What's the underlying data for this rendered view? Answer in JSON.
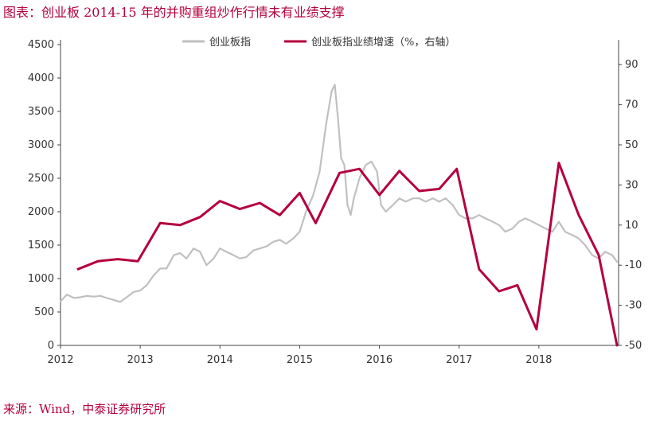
{
  "title": "图表：创业板 2014-15 年的并购重组炒作行情未有业绩支撑",
  "source": "来源：Wind，中泰证券研究所",
  "chart_data": {
    "type": "line",
    "x_ticks": [
      "2012",
      "2013",
      "2014",
      "2015",
      "2016",
      "2017",
      "2018"
    ],
    "xlim": [
      2012,
      2019
    ],
    "y_left_ticks": [
      "0",
      "500",
      "1000",
      "1500",
      "2000",
      "2500",
      "3000",
      "3500",
      "4000",
      "4500"
    ],
    "ylim_left": [
      0,
      4500
    ],
    "y_right_ticks": [
      "-50",
      "-30",
      "-10",
      "10",
      "30",
      "50",
      "70",
      "90"
    ],
    "ylim_right": [
      -50,
      100
    ],
    "grid": false,
    "legend_position": "top",
    "series": [
      {
        "name": "创业板指",
        "axis": "left",
        "color": "#c0c0c0",
        "x": [
          2012.0,
          2012.08,
          2012.17,
          2012.25,
          2012.33,
          2012.42,
          2012.5,
          2012.58,
          2012.67,
          2012.75,
          2012.83,
          2012.92,
          2013.0,
          2013.08,
          2013.17,
          2013.25,
          2013.33,
          2013.42,
          2013.5,
          2013.58,
          2013.67,
          2013.75,
          2013.83,
          2013.92,
          2014.0,
          2014.08,
          2014.17,
          2014.25,
          2014.33,
          2014.42,
          2014.5,
          2014.58,
          2014.67,
          2014.75,
          2014.83,
          2014.92,
          2015.0,
          2015.08,
          2015.17,
          2015.25,
          2015.33,
          2015.4,
          2015.44,
          2015.48,
          2015.52,
          2015.56,
          2015.6,
          2015.64,
          2015.68,
          2015.75,
          2015.83,
          2015.9,
          2015.97,
          2016.02,
          2016.08,
          2016.17,
          2016.25,
          2016.33,
          2016.42,
          2016.5,
          2016.58,
          2016.67,
          2016.75,
          2016.83,
          2016.92,
          2017.0,
          2017.08,
          2017.17,
          2017.25,
          2017.33,
          2017.42,
          2017.5,
          2017.58,
          2017.67,
          2017.75,
          2017.83,
          2017.92,
          2018.0,
          2018.08,
          2018.17,
          2018.25,
          2018.33,
          2018.42,
          2018.5,
          2018.58,
          2018.67,
          2018.75,
          2018.83,
          2018.92,
          2018.98
        ],
        "values": [
          660,
          760,
          710,
          720,
          740,
          730,
          740,
          710,
          680,
          650,
          720,
          800,
          820,
          900,
          1050,
          1150,
          1150,
          1350,
          1380,
          1300,
          1450,
          1400,
          1200,
          1300,
          1450,
          1400,
          1350,
          1300,
          1320,
          1420,
          1450,
          1480,
          1550,
          1580,
          1520,
          1600,
          1700,
          2000,
          2250,
          2600,
          3300,
          3800,
          3900,
          3400,
          2800,
          2700,
          2100,
          1950,
          2200,
          2500,
          2700,
          2750,
          2600,
          2100,
          2000,
          2100,
          2200,
          2150,
          2200,
          2200,
          2150,
          2200,
          2150,
          2200,
          2100,
          1950,
          1900,
          1900,
          1950,
          1900,
          1850,
          1800,
          1700,
          1750,
          1850,
          1900,
          1850,
          1800,
          1750,
          1700,
          1850,
          1700,
          1650,
          1600,
          1500,
          1350,
          1300,
          1400,
          1350,
          1250
        ]
      },
      {
        "name": "创业板指业绩增速（%，右轴）",
        "axis": "right",
        "color": "#b4003c",
        "x": [
          2012.22,
          2012.47,
          2012.72,
          2012.97,
          2013.25,
          2013.5,
          2013.75,
          2014.0,
          2014.25,
          2014.5,
          2014.75,
          2015.0,
          2015.2,
          2015.5,
          2015.75,
          2016.0,
          2016.25,
          2016.5,
          2016.75,
          2016.97,
          2017.25,
          2017.5,
          2017.73,
          2017.97,
          2018.25,
          2018.5,
          2018.75,
          2018.98
        ],
        "values": [
          -12,
          -8,
          -7,
          -8,
          11,
          10,
          14,
          22,
          18,
          21,
          15,
          26,
          11,
          36,
          38,
          25,
          37,
          27,
          28,
          38,
          -12,
          -23,
          -20,
          -42,
          41,
          15,
          -5,
          -50
        ]
      }
    ]
  }
}
